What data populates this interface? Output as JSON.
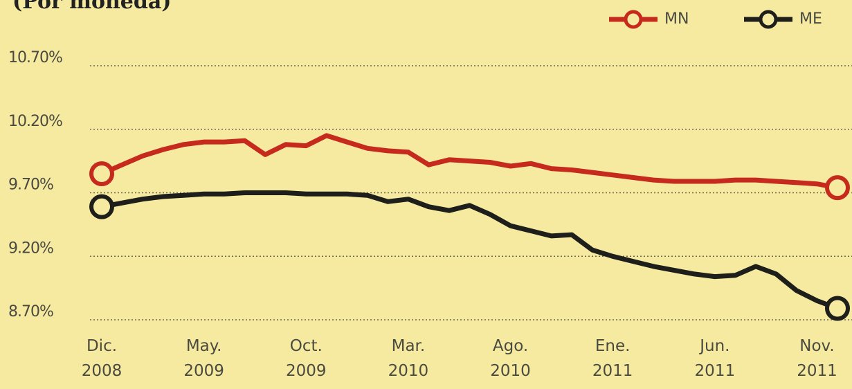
{
  "chart_data": {
    "type": "line",
    "subtitle": "(Por moneda)",
    "categories": [
      "Dic. 2008",
      null,
      null,
      null,
      null,
      "May. 2009",
      null,
      null,
      null,
      null,
      "Oct. 2009",
      null,
      null,
      null,
      null,
      "Mar. 2010",
      null,
      null,
      null,
      null,
      "Ago. 2010",
      null,
      null,
      null,
      null,
      "Ene. 2011",
      null,
      null,
      null,
      null,
      "Jun. 2011",
      null,
      null,
      null,
      null,
      "Nov. 2011",
      null
    ],
    "series": [
      {
        "name": "MN",
        "color": "#c62a1c",
        "values": [
          9.85,
          9.92,
          9.99,
          10.04,
          10.08,
          10.1,
          10.1,
          10.11,
          10.0,
          10.08,
          10.07,
          10.15,
          10.1,
          10.05,
          10.03,
          10.02,
          9.92,
          9.96,
          9.95,
          9.94,
          9.91,
          9.93,
          9.89,
          9.88,
          9.86,
          9.84,
          9.82,
          9.8,
          9.79,
          9.79,
          9.79,
          9.8,
          9.8,
          9.79,
          9.78,
          9.77,
          9.74
        ]
      },
      {
        "name": "ME",
        "color": "#1e1e1a",
        "values": [
          9.59,
          9.62,
          9.65,
          9.67,
          9.68,
          9.69,
          9.69,
          9.7,
          9.7,
          9.7,
          9.69,
          9.69,
          9.69,
          9.68,
          9.63,
          9.65,
          9.59,
          9.56,
          9.6,
          9.53,
          9.44,
          9.4,
          9.36,
          9.37,
          9.25,
          9.2,
          9.16,
          9.12,
          9.09,
          9.06,
          9.04,
          9.05,
          9.12,
          9.06,
          8.93,
          8.85,
          8.79
        ]
      }
    ],
    "ylim": [
      8.7,
      10.7
    ],
    "yticks": [
      {
        "value": 8.7,
        "label": "8.70%"
      },
      {
        "value": 9.2,
        "label": "9.20%"
      },
      {
        "value": 9.7,
        "label": "9.70%"
      },
      {
        "value": 10.2,
        "label": "10.20%"
      },
      {
        "value": 10.7,
        "label": "10.70%"
      }
    ],
    "grid": true,
    "legend": "top-right"
  }
}
